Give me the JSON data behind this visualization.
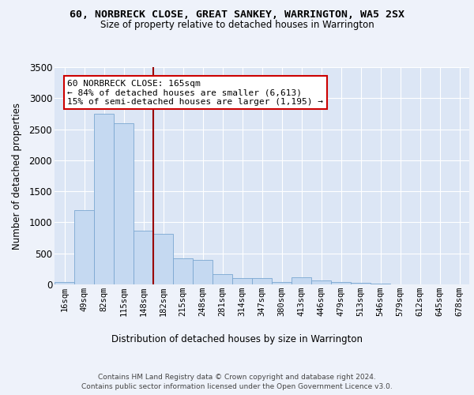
{
  "title": "60, NORBRECK CLOSE, GREAT SANKEY, WARRINGTON, WA5 2SX",
  "subtitle": "Size of property relative to detached houses in Warrington",
  "xlabel": "Distribution of detached houses by size in Warrington",
  "ylabel": "Number of detached properties",
  "categories": [
    "16sqm",
    "49sqm",
    "82sqm",
    "115sqm",
    "148sqm",
    "182sqm",
    "215sqm",
    "248sqm",
    "281sqm",
    "314sqm",
    "347sqm",
    "380sqm",
    "413sqm",
    "446sqm",
    "479sqm",
    "513sqm",
    "546sqm",
    "579sqm",
    "612sqm",
    "645sqm",
    "678sqm"
  ],
  "values": [
    40,
    1200,
    2750,
    2600,
    870,
    820,
    420,
    390,
    170,
    100,
    100,
    40,
    110,
    60,
    40,
    30,
    10,
    5,
    3,
    2,
    1
  ],
  "bar_color": "#c5d9f1",
  "bar_edge_color": "#7ba7d1",
  "vline_color": "#990000",
  "annotation_text": "60 NORBRECK CLOSE: 165sqm\n← 84% of detached houses are smaller (6,613)\n15% of semi-detached houses are larger (1,195) →",
  "annotation_box_color": "#ffffff",
  "annotation_box_edge": "#cc0000",
  "background_color": "#eef2fa",
  "plot_bg_color": "#dce6f5",
  "grid_color": "#ffffff",
  "ylim": [
    0,
    3500
  ],
  "yticks": [
    0,
    500,
    1000,
    1500,
    2000,
    2500,
    3000,
    3500
  ],
  "footer_line1": "Contains HM Land Registry data © Crown copyright and database right 2024.",
  "footer_line2": "Contains public sector information licensed under the Open Government Licence v3.0."
}
